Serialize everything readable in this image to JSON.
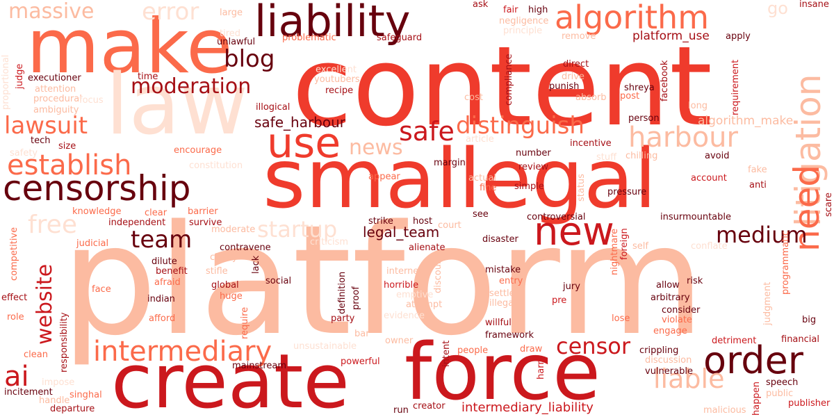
{
  "palette": {
    "deep": "#67000d",
    "dark": "#a50f15",
    "red": "#cb181d",
    "bright": "#ef3b2c",
    "orange_red": "#fb6a4a",
    "salmon": "#fc9272",
    "peach": "#fcbba1",
    "pale": "#fee0d2"
  },
  "words": [
    {
      "text": "platform",
      "color": "#fcbba1"
    },
    {
      "text": "content",
      "color": "#ef3b2c"
    },
    {
      "text": "smallegal",
      "color": "#ef3b2c"
    },
    {
      "text": "make",
      "color": "#fb6a4a"
    },
    {
      "text": "law",
      "color": "#fee0d2"
    },
    {
      "text": "create",
      "color": "#cb181d"
    },
    {
      "text": "force",
      "color": "#cb181d"
    },
    {
      "text": "liability",
      "color": "#67000d"
    },
    {
      "text": "algorithm",
      "color": "#fb6a4a"
    },
    {
      "text": "censorship",
      "color": "#67000d"
    },
    {
      "text": "use",
      "color": "#ef3b2c"
    },
    {
      "text": "order",
      "color": "#67000d"
    },
    {
      "text": "new",
      "color": "#cb181d"
    },
    {
      "text": "litigation",
      "color": "#fcbba1"
    },
    {
      "text": "need",
      "color": "#fb6a4a"
    },
    {
      "text": "establish",
      "color": "#fb6a4a"
    },
    {
      "text": "intermediary",
      "color": "#fb6a4a"
    },
    {
      "text": "harbour",
      "color": "#fcbba1"
    },
    {
      "text": "moderation",
      "color": "#a50f15"
    },
    {
      "text": "distinguish",
      "color": "#fb6a4a"
    },
    {
      "text": "safe",
      "color": "#cb181d"
    },
    {
      "text": "censor",
      "color": "#cb181d"
    },
    {
      "text": "liable",
      "color": "#fcbba1"
    },
    {
      "text": "error",
      "color": "#fee0d2"
    },
    {
      "text": "massive",
      "color": "#fcbba1"
    },
    {
      "text": "lawsuit",
      "color": "#fb6a4a"
    },
    {
      "text": "free",
      "color": "#fee0d2"
    },
    {
      "text": "team",
      "color": "#67000d"
    },
    {
      "text": "medium",
      "color": "#67000d"
    },
    {
      "text": "blog",
      "color": "#67000d"
    },
    {
      "text": "news",
      "color": "#fcbba1"
    },
    {
      "text": "startup",
      "color": "#fee0d2"
    },
    {
      "text": "website",
      "color": "#cb181d"
    },
    {
      "text": "ai",
      "color": "#cb181d"
    },
    {
      "text": "go",
      "color": "#fee0d2"
    },
    {
      "text": "safe_harbour",
      "color": "#67000d"
    },
    {
      "text": "legal_team",
      "color": "#67000d"
    },
    {
      "text": "intermediary_liability",
      "color": "#cb181d"
    },
    {
      "text": "platform_use",
      "color": "#a50f15"
    },
    {
      "text": "algorithm_make",
      "color": "#fcbba1"
    },
    {
      "text": "large",
      "color": "#fcbba1"
    },
    {
      "text": "ask",
      "color": "#a50f15"
    },
    {
      "text": "fair",
      "color": "#cb181d"
    },
    {
      "text": "high",
      "color": "#67000d"
    },
    {
      "text": "insane",
      "color": "#a50f15"
    },
    {
      "text": "negligence",
      "color": "#fcbba1"
    },
    {
      "text": "principle",
      "color": "#fee0d2"
    },
    {
      "text": "tired",
      "color": "#fee0d2"
    },
    {
      "text": "remove",
      "color": "#fcbba1"
    },
    {
      "text": "apply",
      "color": "#67000d"
    },
    {
      "text": "unlawful",
      "color": "#67000d"
    },
    {
      "text": "problematic",
      "color": "#fb6a4a"
    },
    {
      "text": "safeguard",
      "color": "#a50f15"
    },
    {
      "text": "excellent",
      "color": "#fee0d2"
    },
    {
      "text": "youtubers",
      "color": "#fcbba1"
    },
    {
      "text": "recipe",
      "color": "#a50f15"
    },
    {
      "text": "executioner",
      "color": "#67000d"
    },
    {
      "text": "attention",
      "color": "#fcbba1"
    },
    {
      "text": "procedural",
      "color": "#fcbba1"
    },
    {
      "text": "ambiguity",
      "color": "#fcbba1"
    },
    {
      "text": "focus",
      "color": "#fee0d2"
    },
    {
      "text": "time",
      "color": "#a50f15"
    },
    {
      "text": "judge",
      "color": "#cb181d"
    },
    {
      "text": "illogical",
      "color": "#a50f15"
    },
    {
      "text": "compliance",
      "color": "#a50f15"
    },
    {
      "text": "cost",
      "color": "#fcbba1"
    },
    {
      "text": "drive",
      "color": "#fcbba1"
    },
    {
      "text": "direct",
      "color": "#a50f15"
    },
    {
      "text": "punish",
      "color": "#67000d"
    },
    {
      "text": "absorb",
      "color": "#fcbba1"
    },
    {
      "text": "post",
      "color": "#fb6a4a"
    },
    {
      "text": "shreya",
      "color": "#67000d"
    },
    {
      "text": "facebook",
      "color": "#a50f15"
    },
    {
      "text": "requirement",
      "color": "#cb181d"
    },
    {
      "text": "long",
      "color": "#fcbba1"
    },
    {
      "text": "person",
      "color": "#67000d"
    },
    {
      "text": "tech",
      "color": "#67000d"
    },
    {
      "text": "size",
      "color": "#a50f15"
    },
    {
      "text": "safety",
      "color": "#fee0d2"
    },
    {
      "text": "encourage",
      "color": "#fb6a4a"
    },
    {
      "text": "constitution",
      "color": "#fee0d2"
    },
    {
      "text": "article",
      "color": "#fee0d2"
    },
    {
      "text": "incentive",
      "color": "#a50f15"
    },
    {
      "text": "stuff",
      "color": "#fee0d2"
    },
    {
      "text": "chilling",
      "color": "#fcbba1"
    },
    {
      "text": "number",
      "color": "#67000d"
    },
    {
      "text": "review",
      "color": "#a50f15"
    },
    {
      "text": "margin",
      "color": "#67000d"
    },
    {
      "text": "avoid",
      "color": "#67000d"
    },
    {
      "text": "fake",
      "color": "#fcbba1"
    },
    {
      "text": "account",
      "color": "#cb181d"
    },
    {
      "text": "anti",
      "color": "#a50f15"
    },
    {
      "text": "appear",
      "color": "#fb6a4a"
    },
    {
      "text": "actual",
      "color": "#fcbba1"
    },
    {
      "text": "fine",
      "color": "#fb6a4a"
    },
    {
      "text": "simple",
      "color": "#a50f15"
    },
    {
      "text": "status",
      "color": "#fcbba1"
    },
    {
      "text": "pressure",
      "color": "#67000d"
    },
    {
      "text": "knowledge",
      "color": "#fb6a4a"
    },
    {
      "text": "clear",
      "color": "#fb6a4a"
    },
    {
      "text": "barrier",
      "color": "#fb6a4a"
    },
    {
      "text": "see",
      "color": "#67000d"
    },
    {
      "text": "court",
      "color": "#fcbba1"
    },
    {
      "text": "controversial",
      "color": "#67000d"
    },
    {
      "text": "independent",
      "color": "#a50f15"
    },
    {
      "text": "survive",
      "color": "#a50f15"
    },
    {
      "text": "strike",
      "color": "#67000d"
    },
    {
      "text": "host",
      "color": "#67000d"
    },
    {
      "text": "insurmountable",
      "color": "#67000d"
    },
    {
      "text": "judicial",
      "color": "#fb6a4a"
    },
    {
      "text": "moderate",
      "color": "#fcbba1"
    },
    {
      "text": "criticism",
      "color": "#fee0d2"
    },
    {
      "text": "alienate",
      "color": "#a50f15"
    },
    {
      "text": "disaster",
      "color": "#67000d"
    },
    {
      "text": "nightmare",
      "color": "#fb6a4a"
    },
    {
      "text": "foreign",
      "color": "#cb181d"
    },
    {
      "text": "self",
      "color": "#fcbba1"
    },
    {
      "text": "conflate",
      "color": "#fee0d2"
    },
    {
      "text": "competitive",
      "color": "#fb6a4a"
    },
    {
      "text": "contravene",
      "color": "#67000d"
    },
    {
      "text": "clarify",
      "color": "#fcbba1"
    },
    {
      "text": "benefit",
      "color": "#a50f15"
    },
    {
      "text": "dilute",
      "color": "#67000d"
    },
    {
      "text": "stifle",
      "color": "#fcbba1"
    },
    {
      "text": "afraid",
      "color": "#fb6a4a"
    },
    {
      "text": "lack",
      "color": "#67000d"
    },
    {
      "text": "internet",
      "color": "#fcbba1"
    },
    {
      "text": "discourse",
      "color": "#fcbba1"
    },
    {
      "text": "mistake",
      "color": "#67000d"
    },
    {
      "text": "entry",
      "color": "#fb6a4a"
    },
    {
      "text": "programmatic",
      "color": "#fb6a4a"
    },
    {
      "text": "scare",
      "color": "#a50f15"
    },
    {
      "text": "effect",
      "color": "#a50f15"
    },
    {
      "text": "face",
      "color": "#fb6a4a"
    },
    {
      "text": "global",
      "color": "#a50f15"
    },
    {
      "text": "huge",
      "color": "#fb6a4a"
    },
    {
      "text": "social",
      "color": "#67000d"
    },
    {
      "text": "definition",
      "color": "#67000d"
    },
    {
      "text": "proof",
      "color": "#67000d"
    },
    {
      "text": "horrible",
      "color": "#cb181d"
    },
    {
      "text": "emptive",
      "color": "#fee0d2"
    },
    {
      "text": "settle",
      "color": "#fcbba1"
    },
    {
      "text": "illegal",
      "color": "#fcbba1"
    },
    {
      "text": "jury",
      "color": "#67000d"
    },
    {
      "text": "pre",
      "color": "#cb181d"
    },
    {
      "text": "allow",
      "color": "#67000d"
    },
    {
      "text": "risk",
      "color": "#67000d"
    },
    {
      "text": "arbitrary",
      "color": "#67000d"
    },
    {
      "text": "consider",
      "color": "#67000d"
    },
    {
      "text": "violate",
      "color": "#fb6a4a"
    },
    {
      "text": "judgment",
      "color": "#fcbba1"
    },
    {
      "text": "big",
      "color": "#67000d"
    },
    {
      "text": "role",
      "color": "#fb6a4a"
    },
    {
      "text": "indian",
      "color": "#67000d"
    },
    {
      "text": "afford",
      "color": "#fb6a4a"
    },
    {
      "text": "require",
      "color": "#fb6a4a"
    },
    {
      "text": "responsibility",
      "color": "#a50f15"
    },
    {
      "text": "evidence",
      "color": "#fee0d2"
    },
    {
      "text": "attempt",
      "color": "#fcbba1"
    },
    {
      "text": "party",
      "color": "#a50f15"
    },
    {
      "text": "willful",
      "color": "#a50f15"
    },
    {
      "text": "framework",
      "color": "#67000d"
    },
    {
      "text": "lose",
      "color": "#fb6a4a"
    },
    {
      "text": "engage",
      "color": "#fb6a4a"
    },
    {
      "text": "detriment",
      "color": "#cb181d"
    },
    {
      "text": "financial",
      "color": "#a50f15"
    },
    {
      "text": "clean",
      "color": "#fb6a4a"
    },
    {
      "text": "bar",
      "color": "#fcbba1"
    },
    {
      "text": "owner",
      "color": "#fcbba1"
    },
    {
      "text": "unsustainable",
      "color": "#fee0d2"
    },
    {
      "text": "intent",
      "color": "#a50f15"
    },
    {
      "text": "people",
      "color": "#fb6a4a"
    },
    {
      "text": "draw",
      "color": "#fb6a4a"
    },
    {
      "text": "crippling",
      "color": "#67000d"
    },
    {
      "text": "discussion",
      "color": "#fcbba1"
    },
    {
      "text": "vulnerable",
      "color": "#67000d"
    },
    {
      "text": "powerful",
      "color": "#cb181d"
    },
    {
      "text": "mainstream",
      "color": "#67000d"
    },
    {
      "text": "impose",
      "color": "#fee0d2"
    },
    {
      "text": "incitement",
      "color": "#67000d"
    },
    {
      "text": "handle",
      "color": "#fcbba1"
    },
    {
      "text": "singhal",
      "color": "#fb6a4a"
    },
    {
      "text": "departure",
      "color": "#a50f15"
    },
    {
      "text": "harm",
      "color": "#cb181d"
    },
    {
      "text": "speech",
      "color": "#67000d"
    },
    {
      "text": "happen",
      "color": "#cb181d"
    },
    {
      "text": "public",
      "color": "#fcbba1"
    },
    {
      "text": "publisher",
      "color": "#cb181d"
    },
    {
      "text": "malicious",
      "color": "#fcbba1"
    },
    {
      "text": "run",
      "color": "#67000d"
    },
    {
      "text": "creator",
      "color": "#a50f15"
    },
    {
      "text": "proportional",
      "color": "#fee0d2"
    }
  ]
}
